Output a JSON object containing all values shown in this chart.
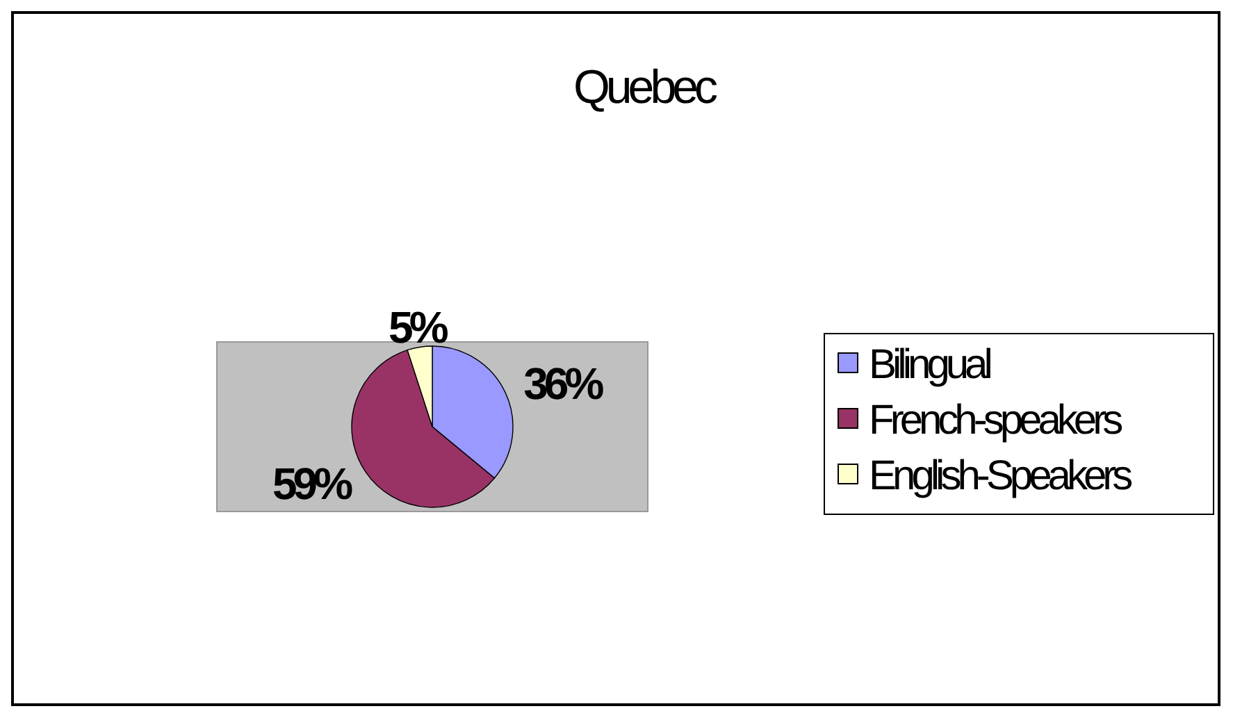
{
  "chart_data": {
    "type": "pie",
    "title": "Quebec",
    "categories": [
      "Bilingual",
      "French-speakers",
      "English-Speakers"
    ],
    "values": [
      36,
      59,
      5
    ],
    "colors": [
      "#9999ff",
      "#993366",
      "#ffffcc"
    ],
    "value_labels": [
      "36%",
      "59%",
      "5%"
    ],
    "legend": "right"
  }
}
